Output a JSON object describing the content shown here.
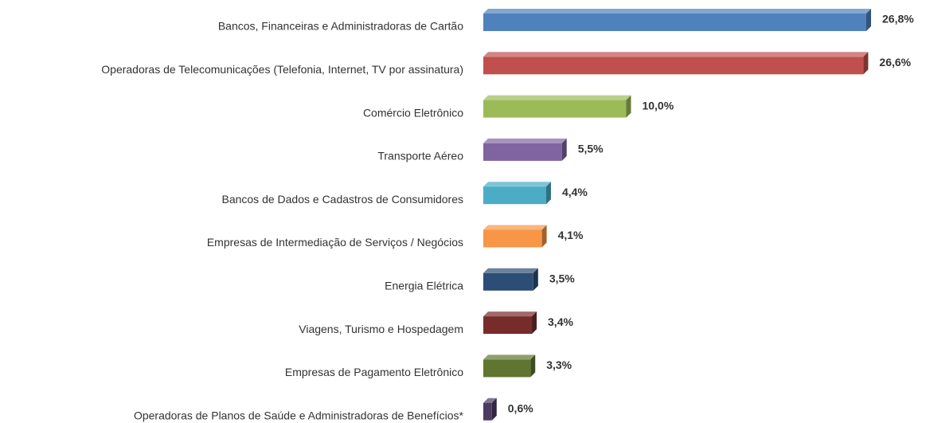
{
  "chart_data": {
    "type": "bar",
    "orientation": "horizontal",
    "categories": [
      "Bancos, Financeiras e Administradoras de Cartão",
      "Operadoras de Telecomunicações (Telefonia, Internet, TV por assinatura)",
      "Comércio Eletrônico",
      "Transporte Aéreo",
      "Bancos de Dados e Cadastros de Consumidores",
      "Empresas de Intermediação de Serviços / Negócios",
      "Energia Elétrica",
      "Viagens, Turismo e Hospedagem",
      "Empresas de Pagamento Eletrônico",
      "Operadoras de Planos de Saúde e Administradoras de Benefícios*"
    ],
    "values": [
      26.8,
      26.6,
      10.0,
      5.5,
      4.4,
      4.1,
      3.5,
      3.4,
      3.3,
      0.6
    ],
    "value_labels": [
      "26,8%",
      "26,6%",
      "10,0%",
      "5,5%",
      "4,4%",
      "4,1%",
      "3,5%",
      "3,4%",
      "3,3%",
      "0,6%"
    ],
    "colors": [
      "#4f81bd",
      "#c0504d",
      "#9bbb59",
      "#8064a2",
      "#4bacc6",
      "#f79646",
      "#2c4d75",
      "#772c2a",
      "#5f7530",
      "#4d3b62"
    ]
  }
}
